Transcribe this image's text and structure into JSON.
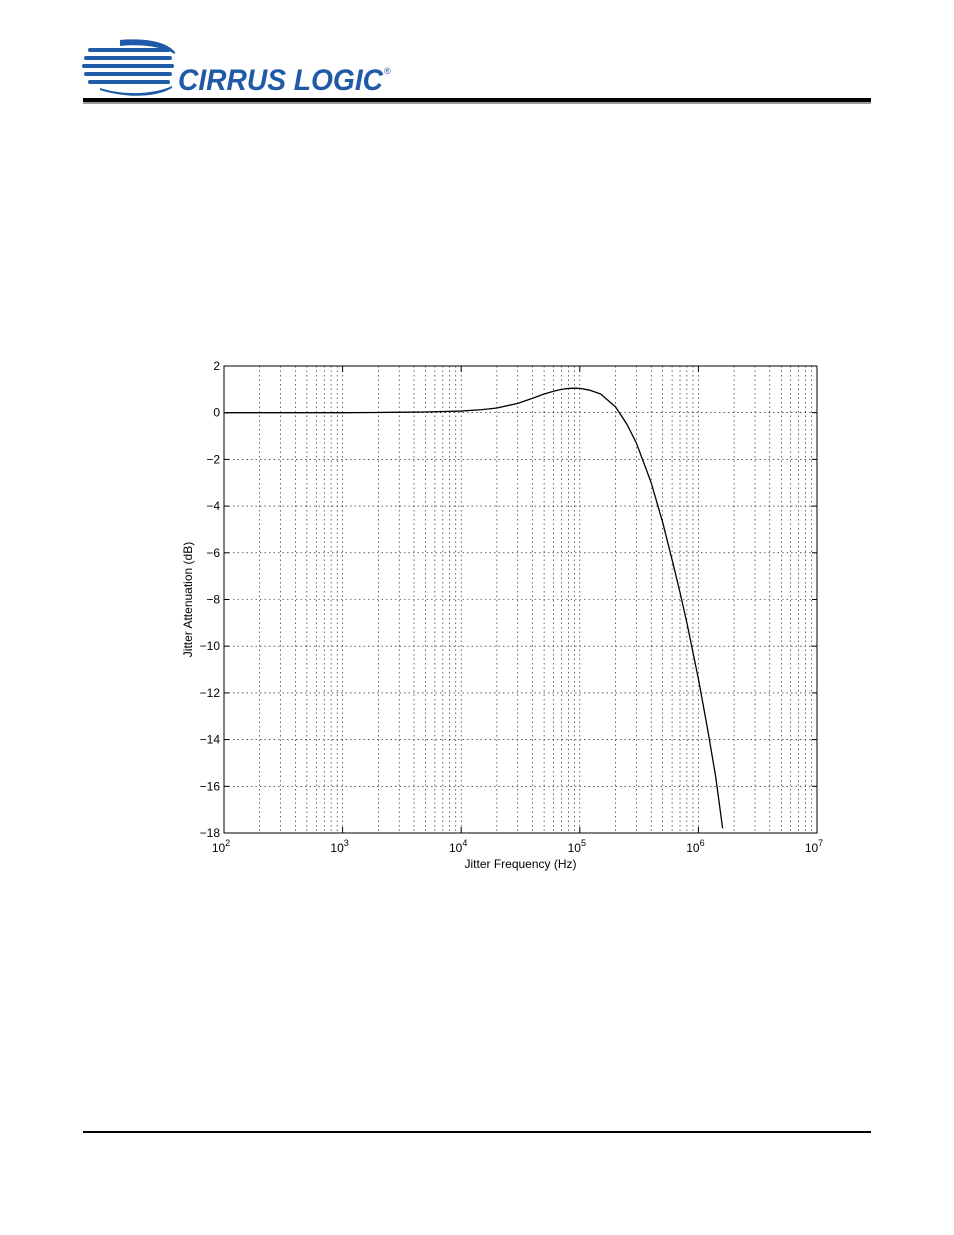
{
  "header": {
    "logo": {
      "brand_text": "CIRRUS LOGIC",
      "registered_mark": "®",
      "brand_color": "#1E5AA8"
    }
  },
  "chart_data": {
    "type": "line",
    "title": "",
    "xlabel": "Jitter Frequency (Hz)",
    "ylabel": "Jitter Attenuation (dB)",
    "x_scale": "log",
    "xlim": [
      100,
      10000000
    ],
    "ylim": [
      -18,
      2
    ],
    "x_ticks": [
      {
        "value": 100,
        "base": "10",
        "exp": "2"
      },
      {
        "value": 1000,
        "base": "10",
        "exp": "3"
      },
      {
        "value": 10000,
        "base": "10",
        "exp": "4"
      },
      {
        "value": 100000,
        "base": "10",
        "exp": "5"
      },
      {
        "value": 1000000,
        "base": "10",
        "exp": "6"
      },
      {
        "value": 10000000,
        "base": "10",
        "exp": "7"
      }
    ],
    "y_ticks": [
      {
        "value": 2,
        "label": "2"
      },
      {
        "value": 0,
        "label": "0"
      },
      {
        "value": -2,
        "label": "−2"
      },
      {
        "value": -4,
        "label": "−4"
      },
      {
        "value": -6,
        "label": "−6"
      },
      {
        "value": -8,
        "label": "−8"
      },
      {
        "value": -10,
        "label": "−10"
      },
      {
        "value": -12,
        "label": "−12"
      },
      {
        "value": -14,
        "label": "−14"
      },
      {
        "value": -16,
        "label": "−16"
      },
      {
        "value": -18,
        "label": "−18"
      }
    ],
    "grid": true,
    "legend": "none",
    "series": [
      {
        "color": "#000000",
        "x": [
          100,
          1000,
          2000,
          5000,
          10000,
          15000,
          20000,
          30000,
          40000,
          50000,
          60000,
          70000,
          80000,
          90000,
          100000,
          120000,
          150000,
          200000,
          250000,
          300000,
          400000,
          500000,
          600000,
          700000,
          800000,
          1000000,
          1200000,
          1400000,
          1600000
        ],
        "y": [
          0,
          0,
          0.01,
          0.03,
          0.07,
          0.13,
          0.2,
          0.4,
          0.62,
          0.8,
          0.92,
          1.0,
          1.04,
          1.05,
          1.04,
          0.97,
          0.8,
          0.25,
          -0.5,
          -1.3,
          -3.0,
          -4.7,
          -6.3,
          -7.7,
          -9.0,
          -11.4,
          -13.6,
          -15.6,
          -17.8
        ]
      }
    ]
  }
}
